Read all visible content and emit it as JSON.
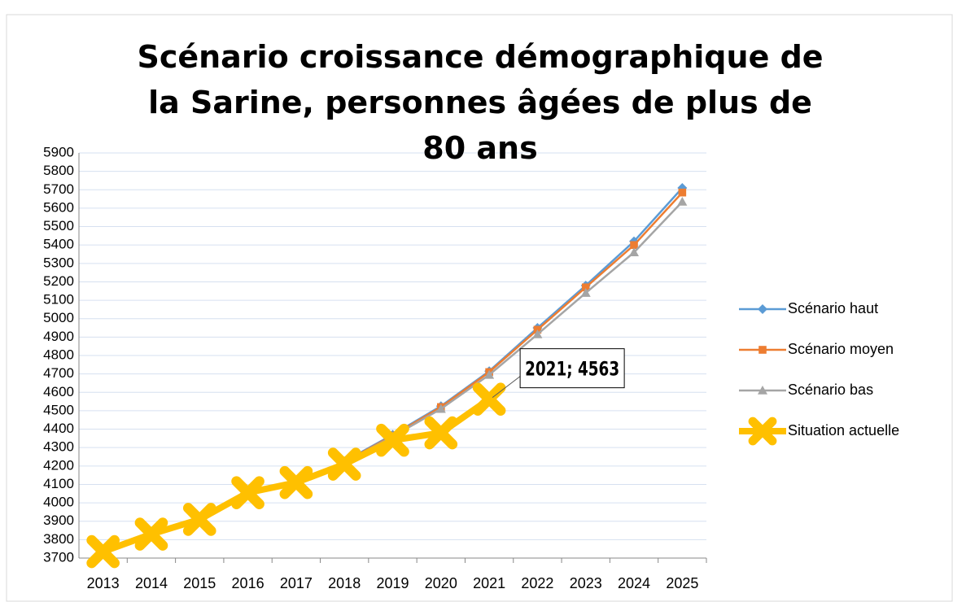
{
  "chart_data": {
    "type": "line",
    "title": "Scénario croissance démographique de la Sarine, personnes âgées de plus de 80 ans",
    "categories": [
      "2013",
      "2014",
      "2015",
      "2016",
      "2017",
      "2018",
      "2019",
      "2020",
      "2021",
      "2022",
      "2023",
      "2024",
      "2025"
    ],
    "series": [
      {
        "name": "Scénario haut",
        "color": "#5b9bd5",
        "marker": "diamond",
        "values": [
          null,
          null,
          null,
          null,
          null,
          4225,
          4370,
          4525,
          4715,
          4950,
          5180,
          5420,
          5710
        ]
      },
      {
        "name": "Scénario moyen",
        "color": "#ed7d31",
        "marker": "square",
        "values": [
          null,
          null,
          null,
          null,
          null,
          4222,
          4365,
          4520,
          4710,
          4940,
          5170,
          5400,
          5685
        ]
      },
      {
        "name": "Scénario bas",
        "color": "#a5a5a5",
        "marker": "triangle",
        "values": [
          null,
          null,
          null,
          null,
          null,
          4220,
          4360,
          4510,
          4695,
          4915,
          5140,
          5360,
          5635
        ]
      },
      {
        "name": "Situation actuelle",
        "color": "#ffc000",
        "marker": "cross",
        "values": [
          3735,
          3830,
          3910,
          4055,
          4110,
          4210,
          4340,
          4380,
          4563,
          null,
          null,
          null,
          null
        ],
        "value_labels": [
          null,
          null,
          null,
          null,
          null,
          null,
          null,
          null,
          "2021; 4563",
          null,
          null,
          null,
          null
        ]
      }
    ],
    "ylim": [
      3700,
      5900
    ],
    "yticks": [
      3700,
      3800,
      3900,
      4000,
      4100,
      4200,
      4300,
      4400,
      4500,
      4600,
      4700,
      4800,
      4900,
      5000,
      5100,
      5200,
      5300,
      5400,
      5500,
      5600,
      5700,
      5800,
      5900
    ],
    "grid": true,
    "legend": "right"
  }
}
